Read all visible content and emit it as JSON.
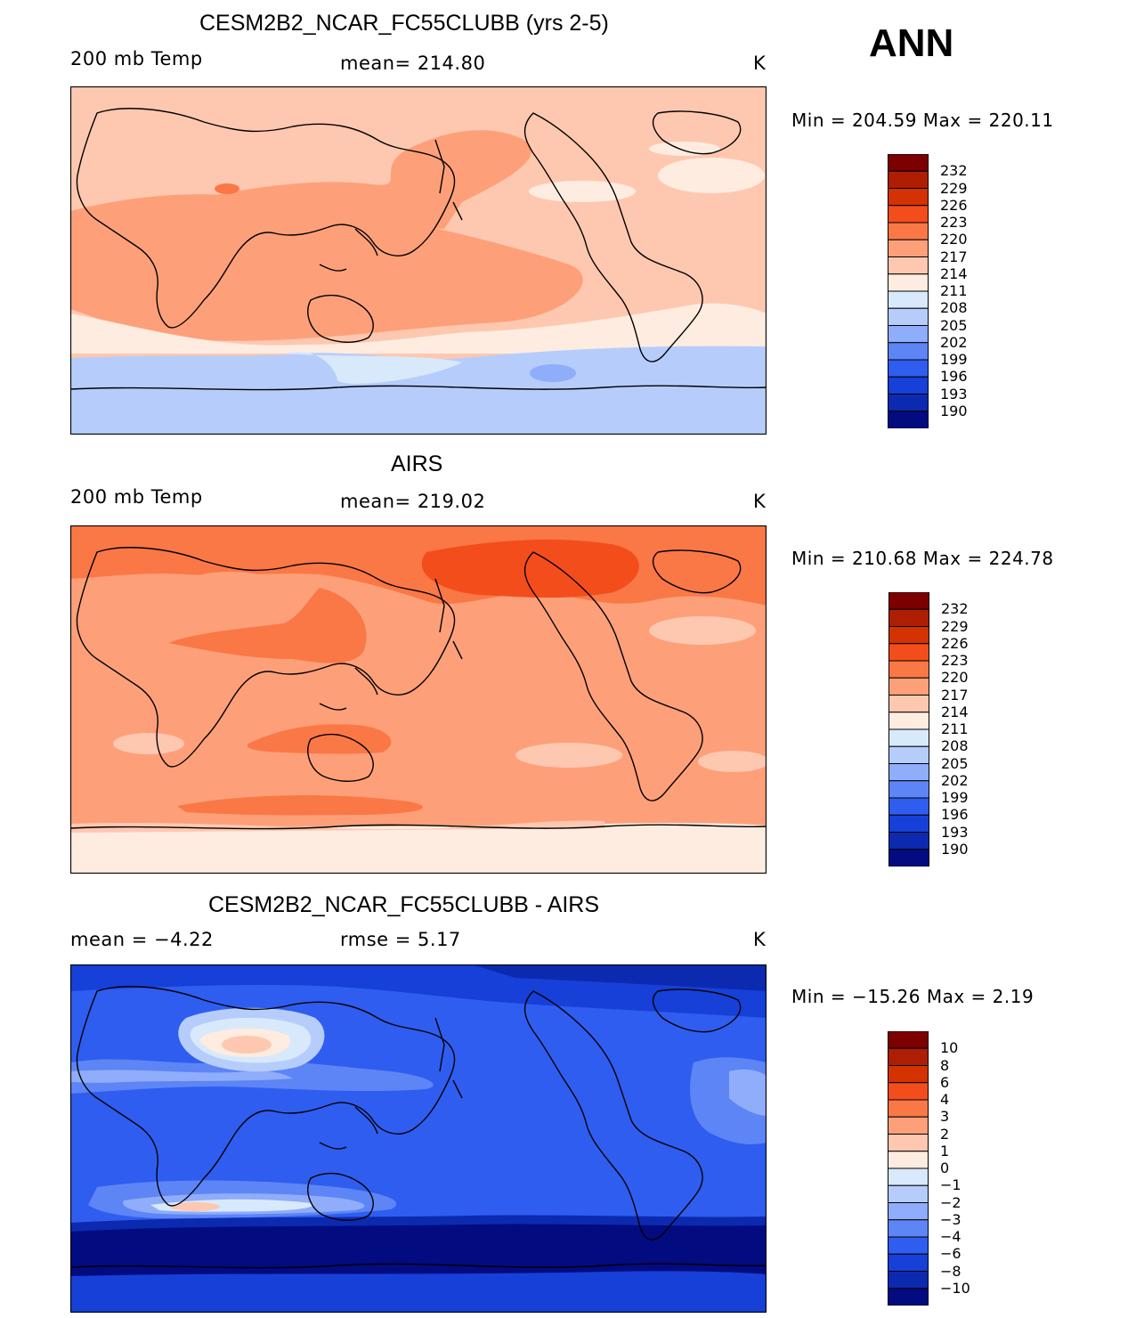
{
  "season": "ANN",
  "panels": [
    {
      "title": "CESM2B2_NCAR_FC55CLUBB (yrs 2-5)",
      "left_label": "200 mb Temp",
      "center_label": "mean=  214.80",
      "units": "K",
      "minmax": "Min  =  204.59  Max  =  220.11",
      "colorbar_labels": [
        "232",
        "229",
        "226",
        "223",
        "220",
        "217",
        "214",
        "211",
        "208",
        "205",
        "202",
        "199",
        "196",
        "193",
        "190"
      ]
    },
    {
      "title": "AIRS",
      "left_label": "200 mb Temp",
      "center_label": "mean=  219.02",
      "units": "K",
      "minmax": "Min  =  210.68  Max  =  224.78",
      "colorbar_labels": [
        "232",
        "229",
        "226",
        "223",
        "220",
        "217",
        "214",
        "211",
        "208",
        "205",
        "202",
        "199",
        "196",
        "193",
        "190"
      ]
    },
    {
      "title": "CESM2B2_NCAR_FC55CLUBB - AIRS",
      "left_label": "mean  =    −4.22",
      "center_label": "rmse  =      5.17",
      "units": "K",
      "minmax": "Min  =  −15.26  Max  =      2.19",
      "colorbar_labels": [
        "10",
        "8",
        "6",
        "4",
        "3",
        "2",
        "1",
        "0",
        "−1",
        "−2",
        "−3",
        "−4",
        "−6",
        "−8",
        "−10"
      ]
    }
  ],
  "colors": {
    "abs_scale": [
      "#7d0000",
      "#ae1e02",
      "#d43200",
      "#f44d1c",
      "#fa7846",
      "#fda07a",
      "#fec8b0",
      "#feece0",
      "#d8e9fc",
      "#b6cdfc",
      "#8fadfa",
      "#5d85f6",
      "#2f5df0",
      "#1640d8",
      "#0c2ab0",
      "#020b80"
    ],
    "diff_scale": [
      "#7d0000",
      "#ae1e02",
      "#d43200",
      "#f44d1c",
      "#fa7846",
      "#fda07a",
      "#fec8b0",
      "#feece0",
      "#d8e9fc",
      "#b6cdfc",
      "#8fadfa",
      "#5d85f6",
      "#2f5df0",
      "#1640d8",
      "#0c2ab0",
      "#020b80"
    ]
  }
}
